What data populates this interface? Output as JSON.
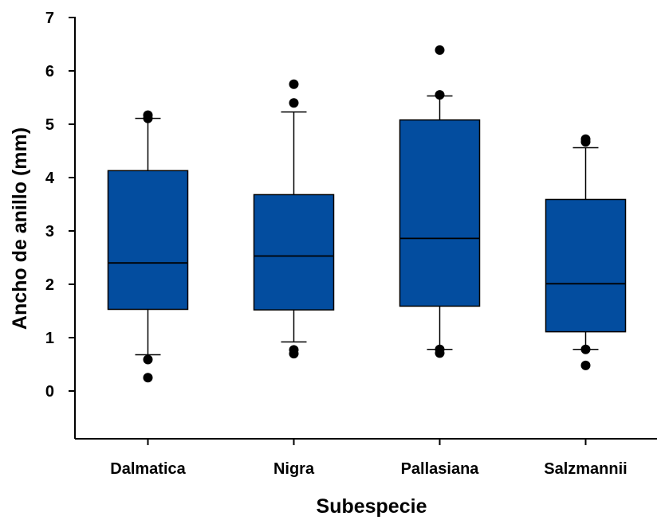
{
  "chart_data": {
    "type": "box",
    "xlabel": "Subespecie",
    "ylabel": "Ancho de anillo (mm)",
    "ylim": [
      -0.9,
      7
    ],
    "yticks": [
      0,
      1,
      2,
      3,
      4,
      5,
      6,
      7
    ],
    "grid": false,
    "box_color": "#034d9f",
    "categories": [
      "Dalmatica",
      "Nigra",
      "Pallasiana",
      "Salzmannii"
    ],
    "boxes": [
      {
        "name": "Dalmatica",
        "whisker_low": 0.68,
        "q1": 1.53,
        "median": 2.4,
        "q3": 4.13,
        "whisker_high": 5.11,
        "outliers": [
          0.25,
          0.59,
          5.11,
          5.17
        ]
      },
      {
        "name": "Nigra",
        "whisker_low": 0.92,
        "q1": 1.52,
        "median": 2.53,
        "q3": 3.68,
        "whisker_high": 5.23,
        "outliers": [
          0.7,
          0.77,
          5.4,
          5.75
        ]
      },
      {
        "name": "Pallasiana",
        "whisker_low": 0.78,
        "q1": 1.59,
        "median": 2.86,
        "q3": 5.08,
        "whisker_high": 5.53,
        "outliers": [
          0.71,
          0.78,
          5.55,
          6.39
        ]
      },
      {
        "name": "Salzmannii",
        "whisker_low": 0.78,
        "q1": 1.11,
        "median": 2.01,
        "q3": 3.59,
        "whisker_high": 4.56,
        "outliers": [
          0.48,
          0.78,
          4.67,
          4.72
        ]
      }
    ]
  }
}
